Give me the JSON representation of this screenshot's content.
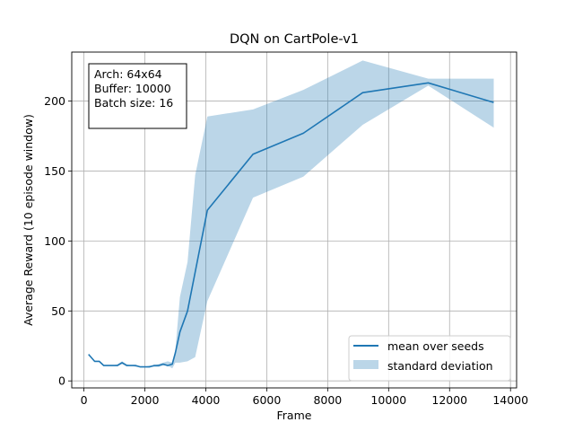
{
  "chart_data": {
    "type": "line",
    "title": "DQN on CartPole-v1",
    "xlabel": "Frame",
    "ylabel": "Average Reward (10 episode window)",
    "xlim": [
      -400,
      14200
    ],
    "ylim": [
      -5,
      235
    ],
    "xticks": [
      0,
      2000,
      4000,
      6000,
      8000,
      10000,
      12000,
      14000
    ],
    "yticks": [
      0,
      50,
      100,
      150,
      200
    ],
    "grid": true,
    "legend_position": "lower-right",
    "annotation": [
      "Arch: 64x64",
      "Buffer: 10000",
      "Batch size: 16"
    ],
    "series": [
      {
        "name": "mean over seeds",
        "color": "#1f77b4",
        "x": [
          150,
          350,
          500,
          650,
          800,
          950,
          1100,
          1250,
          1400,
          1550,
          1700,
          1850,
          2000,
          2150,
          2300,
          2450,
          2600,
          2750,
          2900,
          3000,
          3150,
          3400,
          4050,
          5550,
          7200,
          9150,
          11300,
          13450
        ],
        "y": [
          19,
          14,
          14,
          11,
          11,
          11,
          11,
          13,
          11,
          11,
          11,
          10,
          10,
          10,
          11,
          11,
          12,
          11,
          12,
          20,
          35,
          50,
          122,
          162,
          177,
          206,
          213,
          199
        ]
      }
    ],
    "band": {
      "name": "standard deviation",
      "color": "#1f77b4",
      "opacity": 0.3,
      "x": [
        150,
        350,
        500,
        650,
        800,
        950,
        1100,
        1250,
        1400,
        1550,
        1700,
        1850,
        2000,
        2150,
        2300,
        2450,
        2600,
        2750,
        2900,
        3000,
        3150,
        3400,
        3650,
        4050,
        5550,
        7200,
        9150,
        11300,
        13450
      ],
      "upper": [
        19,
        14,
        14,
        11,
        11,
        11,
        12,
        14,
        12,
        11,
        11,
        10,
        10,
        11,
        11,
        12,
        13,
        14,
        13,
        22,
        60,
        85,
        147,
        189,
        194,
        208,
        229,
        216,
        216
      ],
      "lower": [
        19,
        14,
        14,
        11,
        11,
        11,
        11,
        12,
        11,
        11,
        10,
        10,
        10,
        10,
        10,
        10,
        11,
        11,
        9,
        13,
        13,
        14,
        17,
        57,
        131,
        146,
        183,
        211,
        181
      ]
    }
  }
}
